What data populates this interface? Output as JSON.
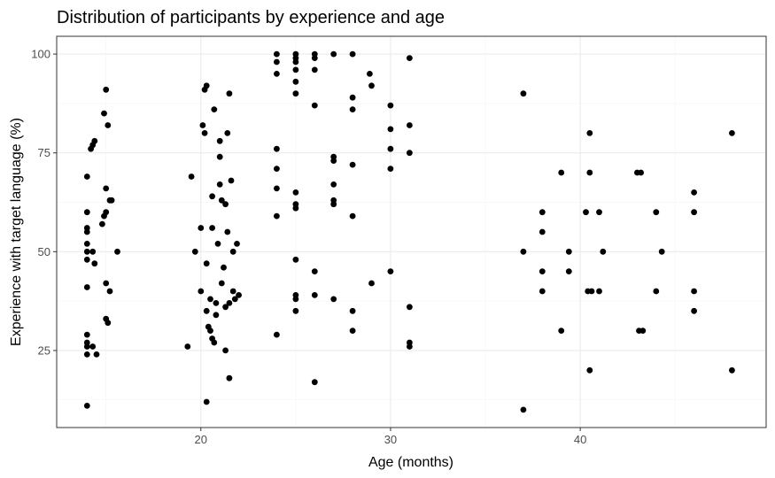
{
  "chart_data": {
    "type": "scatter",
    "title": "Distribution of participants by experience and age",
    "xlabel": "Age (months)",
    "ylabel": "Experience with target language (%)",
    "xlim": [
      12.4,
      49.8
    ],
    "ylim": [
      5.5,
      104.5
    ],
    "x_ticks": [
      20,
      30,
      40
    ],
    "y_ticks": [
      25,
      50,
      75,
      100
    ],
    "x_minor_ticks": [
      15,
      25,
      35,
      45
    ],
    "y_minor_ticks": [
      12.5,
      37.5,
      62.5,
      87.5
    ],
    "grid": true,
    "point_color": "#000000",
    "points": [
      [
        14,
        11
      ],
      [
        14,
        24
      ],
      [
        14,
        26
      ],
      [
        14,
        29
      ],
      [
        14,
        27
      ],
      [
        14,
        41
      ],
      [
        14,
        48
      ],
      [
        14,
        50
      ],
      [
        14,
        52
      ],
      [
        14,
        55
      ],
      [
        14,
        56
      ],
      [
        14,
        60
      ],
      [
        14,
        69
      ],
      [
        14.2,
        76
      ],
      [
        14.3,
        77
      ],
      [
        14.4,
        78
      ],
      [
        14.3,
        50
      ],
      [
        14.4,
        47
      ],
      [
        14.5,
        24
      ],
      [
        14.3,
        26
      ],
      [
        14.8,
        57
      ],
      [
        14.9,
        59
      ],
      [
        15,
        60
      ],
      [
        15,
        66
      ],
      [
        14.9,
        85
      ],
      [
        15,
        91
      ],
      [
        15.1,
        82
      ],
      [
        15,
        33
      ],
      [
        15.1,
        32
      ],
      [
        15,
        42
      ],
      [
        15.2,
        40
      ],
      [
        15.2,
        63
      ],
      [
        15.3,
        63
      ],
      [
        15.6,
        50
      ],
      [
        19.3,
        26
      ],
      [
        19.5,
        69
      ],
      [
        19.7,
        50
      ],
      [
        20,
        56
      ],
      [
        20,
        40
      ],
      [
        20.1,
        82
      ],
      [
        20.2,
        80
      ],
      [
        20.2,
        91
      ],
      [
        20.3,
        92
      ],
      [
        20.3,
        47
      ],
      [
        20.3,
        35
      ],
      [
        20.3,
        12
      ],
      [
        20.4,
        31
      ],
      [
        20.5,
        38
      ],
      [
        20.5,
        30
      ],
      [
        20.6,
        64
      ],
      [
        20.6,
        56
      ],
      [
        20.6,
        28
      ],
      [
        20.7,
        86
      ],
      [
        20.8,
        37
      ],
      [
        20.8,
        34
      ],
      [
        20.7,
        27
      ],
      [
        20.9,
        52
      ],
      [
        21,
        78
      ],
      [
        21,
        74
      ],
      [
        21,
        67
      ],
      [
        21.1,
        63
      ],
      [
        21.2,
        46
      ],
      [
        21.1,
        42
      ],
      [
        21.3,
        25
      ],
      [
        21.3,
        36
      ],
      [
        21.3,
        62
      ],
      [
        21.4,
        80
      ],
      [
        21.4,
        55
      ],
      [
        21.5,
        37
      ],
      [
        21.5,
        90
      ],
      [
        21.5,
        18
      ],
      [
        21.6,
        68
      ],
      [
        21.7,
        50
      ],
      [
        21.7,
        40
      ],
      [
        21.8,
        38
      ],
      [
        21.9,
        52
      ],
      [
        22,
        39
      ],
      [
        24,
        100
      ],
      [
        24,
        98
      ],
      [
        24,
        95
      ],
      [
        24,
        76
      ],
      [
        24,
        71
      ],
      [
        24,
        66
      ],
      [
        24,
        59
      ],
      [
        24,
        29
      ],
      [
        25,
        100
      ],
      [
        25,
        99
      ],
      [
        25,
        98
      ],
      [
        25,
        96
      ],
      [
        25,
        93
      ],
      [
        25,
        90
      ],
      [
        25,
        65
      ],
      [
        25,
        62
      ],
      [
        25,
        61
      ],
      [
        25,
        48
      ],
      [
        25,
        39
      ],
      [
        25,
        38
      ],
      [
        25,
        35
      ],
      [
        26,
        100
      ],
      [
        26,
        99
      ],
      [
        26,
        96
      ],
      [
        26,
        87
      ],
      [
        26,
        45
      ],
      [
        26,
        39
      ],
      [
        26,
        17
      ],
      [
        27,
        100
      ],
      [
        27,
        74
      ],
      [
        27,
        73
      ],
      [
        27,
        67
      ],
      [
        27,
        63
      ],
      [
        27,
        62
      ],
      [
        27,
        38
      ],
      [
        28,
        100
      ],
      [
        28,
        89
      ],
      [
        28,
        86
      ],
      [
        28,
        72
      ],
      [
        28,
        59
      ],
      [
        28,
        35
      ],
      [
        28,
        30
      ],
      [
        28.9,
        95
      ],
      [
        29,
        92
      ],
      [
        29,
        42
      ],
      [
        30,
        87
      ],
      [
        30,
        81
      ],
      [
        30,
        76
      ],
      [
        30,
        71
      ],
      [
        30,
        45
      ],
      [
        31,
        99
      ],
      [
        31,
        82
      ],
      [
        31,
        75
      ],
      [
        31,
        36
      ],
      [
        31,
        27
      ],
      [
        31,
        26
      ],
      [
        37,
        90
      ],
      [
        37,
        50
      ],
      [
        37,
        10
      ],
      [
        38,
        60
      ],
      [
        38,
        55
      ],
      [
        38,
        45
      ],
      [
        38,
        40
      ],
      [
        39,
        70
      ],
      [
        39,
        30
      ],
      [
        39.4,
        50
      ],
      [
        39.4,
        45
      ],
      [
        40.3,
        60
      ],
      [
        40.4,
        40
      ],
      [
        40.5,
        80
      ],
      [
        40.5,
        70
      ],
      [
        40.5,
        20
      ],
      [
        40.6,
        40
      ],
      [
        41,
        60
      ],
      [
        41,
        40
      ],
      [
        41.2,
        50
      ],
      [
        43,
        70
      ],
      [
        43.1,
        30
      ],
      [
        43.2,
        70
      ],
      [
        43.3,
        30
      ],
      [
        44,
        60
      ],
      [
        44,
        40
      ],
      [
        44.3,
        50
      ],
      [
        46,
        65
      ],
      [
        46,
        60
      ],
      [
        46,
        40
      ],
      [
        46,
        35
      ],
      [
        48,
        80
      ],
      [
        48,
        20
      ]
    ]
  }
}
